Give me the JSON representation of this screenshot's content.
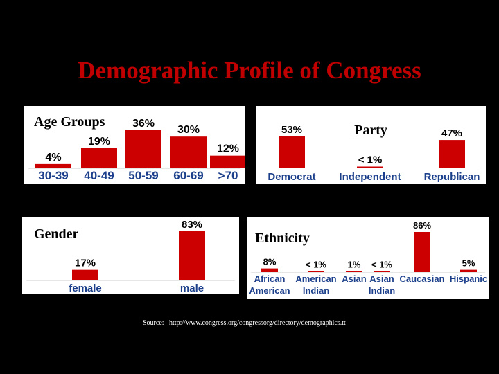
{
  "title": "Demographic Profile of Congress",
  "source": {
    "label": "Source:",
    "url": "http://www.congress.org/congressorg/directory/demographics.tt"
  },
  "colors": {
    "bar": "#cc0000",
    "category_text": "#1b3f8b",
    "background": "#000000"
  },
  "chart_data": [
    {
      "type": "bar",
      "title": "Age Groups",
      "categories": [
        "30-39",
        "40-49",
        "50-59",
        "60-69",
        ">70"
      ],
      "values": [
        4,
        19,
        36,
        30,
        12
      ],
      "value_labels": [
        "4%",
        "19%",
        "36%",
        "30%",
        "12%"
      ],
      "grid": false
    },
    {
      "type": "bar",
      "title": "Party",
      "categories": [
        "Democrat",
        "Independent",
        "Republican"
      ],
      "values": [
        53,
        0.5,
        47
      ],
      "value_labels": [
        "53%",
        "< 1%",
        "47%"
      ],
      "grid": false
    },
    {
      "type": "bar",
      "title": "Gender",
      "categories": [
        "female",
        "male"
      ],
      "values": [
        17,
        83
      ],
      "value_labels": [
        "17%",
        "83%"
      ],
      "grid": false
    },
    {
      "type": "bar",
      "title": "Ethnicity",
      "categories": [
        [
          "African",
          "American"
        ],
        [
          "American",
          "Indian"
        ],
        [
          "Asian"
        ],
        [
          "Asian",
          "Indian"
        ],
        [
          "Caucasian"
        ],
        [
          "Hispanic"
        ]
      ],
      "values": [
        8,
        0.5,
        1,
        0.5,
        86,
        5
      ],
      "value_labels": [
        "8%",
        "< 1%",
        "1%",
        "< 1%",
        "86%",
        "5%"
      ],
      "grid": false
    }
  ]
}
